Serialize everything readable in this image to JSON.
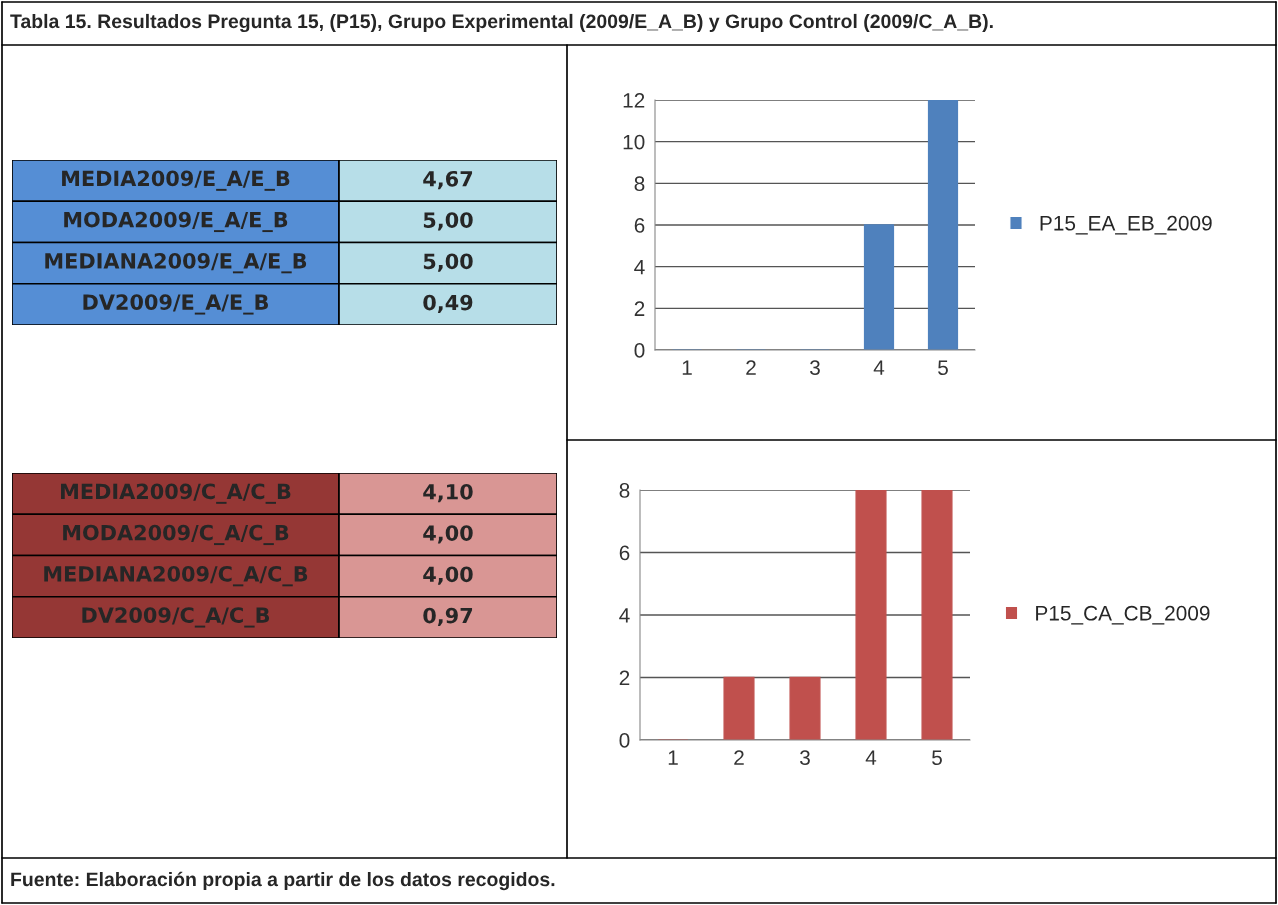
{
  "chart_data": [
    {
      "type": "other",
      "title": "Tabla 15. Resultados Pregunta 15, (P15), Grupo Experimental (2009/E_A_B) y Grupo Control (2009/C_A_B).",
      "colors": [
        "#558ed5",
        "#b7dee8"
      ],
      "annotations": [
        "MEDIA2009/E_A/E_B",
        "4,67",
        "MODA2009/E_A/E_B",
        "5,00",
        "MEDIANA2009/E_A/E_B",
        "5,00",
        "DV2009/E_A/E_B",
        "0,49"
      ]
    },
    {
      "type": "bar",
      "categories": [
        "1",
        "2",
        "3",
        "4",
        "5"
      ],
      "series": [
        {
          "name": "P15_EA_EB_2009",
          "color": "#4f81bd",
          "values": [
            0,
            0,
            0,
            6,
            12
          ]
        }
      ],
      "ylim": [
        0,
        12
      ],
      "yticks": [
        0,
        2,
        4,
        6,
        8,
        10,
        12
      ],
      "grid": "y",
      "legend": "right"
    },
    {
      "type": "other",
      "colors": [
        "#953735",
        "#d99694"
      ],
      "annotations": [
        "MEDIA2009/C_A/C_B",
        "4,10",
        "MODA2009/C_A/C_B",
        "4,00",
        "MEDIANA2009/C_A/C_B",
        "4,00",
        "DV2009/C_A/C_B",
        "0,97"
      ]
    },
    {
      "type": "bar",
      "categories": [
        "1",
        "2",
        "3",
        "4",
        "5"
      ],
      "series": [
        {
          "name": "P15_CA_CB_2009",
          "color": "#c0504d",
          "values": [
            0,
            2,
            2,
            8,
            8
          ]
        }
      ],
      "ylim": [
        0,
        8
      ],
      "yticks": [
        0,
        2,
        4,
        6,
        8
      ],
      "grid": "y",
      "legend": "right",
      "annotations": [
        "Fuente: Elaboración propia a partir de los datos recogidos."
      ]
    }
  ]
}
